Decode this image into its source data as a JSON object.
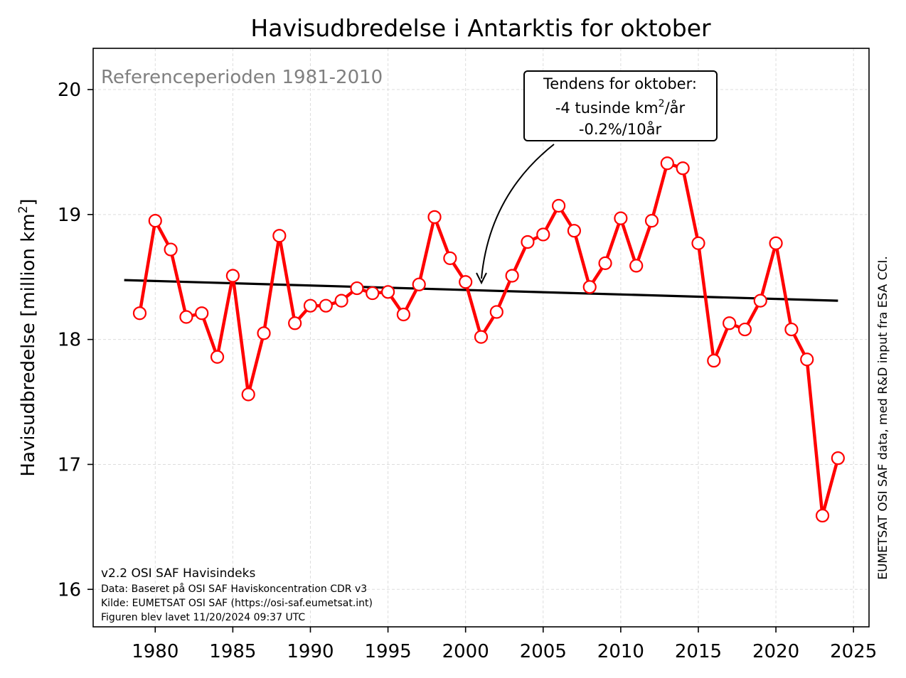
{
  "chart_data": {
    "type": "line",
    "title": "Havisudbredelse i Antarktis for oktober",
    "ylabel": "Havisudbredelse [million km",
    "ylabel_sup": "2",
    "ylabel_end": "]",
    "xlabel": "",
    "xlim": [
      1976,
      2026
    ],
    "ylim": [
      15.7,
      20.33
    ],
    "xticks": [
      1980,
      1985,
      1990,
      1995,
      2000,
      2005,
      2010,
      2015,
      2020,
      2025
    ],
    "yticks": [
      16,
      17,
      18,
      19,
      20
    ],
    "grid": true,
    "colors": {
      "series": "#ff0000",
      "trend": "#000000",
      "reference": "#808080"
    },
    "series": [
      {
        "x": [
          1979,
          1980,
          1981,
          1982,
          1983,
          1984,
          1985,
          1986,
          1987,
          1988,
          1989,
          1990,
          1991,
          1992,
          1993,
          1994,
          1995,
          1996,
          1997,
          1998,
          1999,
          2000,
          2001,
          2002,
          2003,
          2004,
          2005,
          2006,
          2007,
          2008,
          2009,
          2010,
          2011,
          2012,
          2013,
          2014,
          2015,
          2016,
          2017,
          2018,
          2019,
          2020,
          2021,
          2022,
          2023,
          2024
        ],
        "values": [
          18.21,
          18.95,
          18.72,
          18.18,
          18.21,
          17.86,
          18.51,
          17.56,
          18.05,
          18.83,
          18.13,
          18.27,
          18.27,
          18.31,
          18.41,
          18.37,
          18.38,
          18.2,
          18.44,
          18.98,
          18.65,
          18.46,
          18.02,
          18.22,
          18.51,
          18.78,
          18.84,
          19.07,
          18.87,
          18.42,
          18.61,
          18.97,
          18.59,
          18.95,
          19.41,
          19.37,
          18.77,
          17.83,
          18.13,
          18.08,
          18.31,
          18.77,
          18.08,
          17.84,
          16.59,
          17.05
        ]
      }
    ],
    "trend": {
      "x": [
        1978,
        2024
      ],
      "y": [
        18.475,
        18.31
      ]
    },
    "reference_text": "Referenceperioden 1981-2010",
    "annotation": {
      "line1": "Tendens for oktober:",
      "line2_pre": "-4 tusinde km",
      "line2_sup": "2",
      "line2_post": "/år",
      "line3": "-0.2%/10år",
      "arrow_target": [
        2001,
        18.43
      ]
    },
    "footer_lines": [
      "v2.2 OSI SAF Havisindeks",
      "Data: Baseret på OSI SAF Haviskoncentration CDR v3",
      "Kilde: EUMETSAT OSI SAF (https://osi-saf.eumetsat.int)",
      "Figuren blev lavet 11/20/2024 09:37 UTC"
    ],
    "side_text": "EUMETSAT OSI SAF data, med R&D input fra ESA CCI."
  }
}
